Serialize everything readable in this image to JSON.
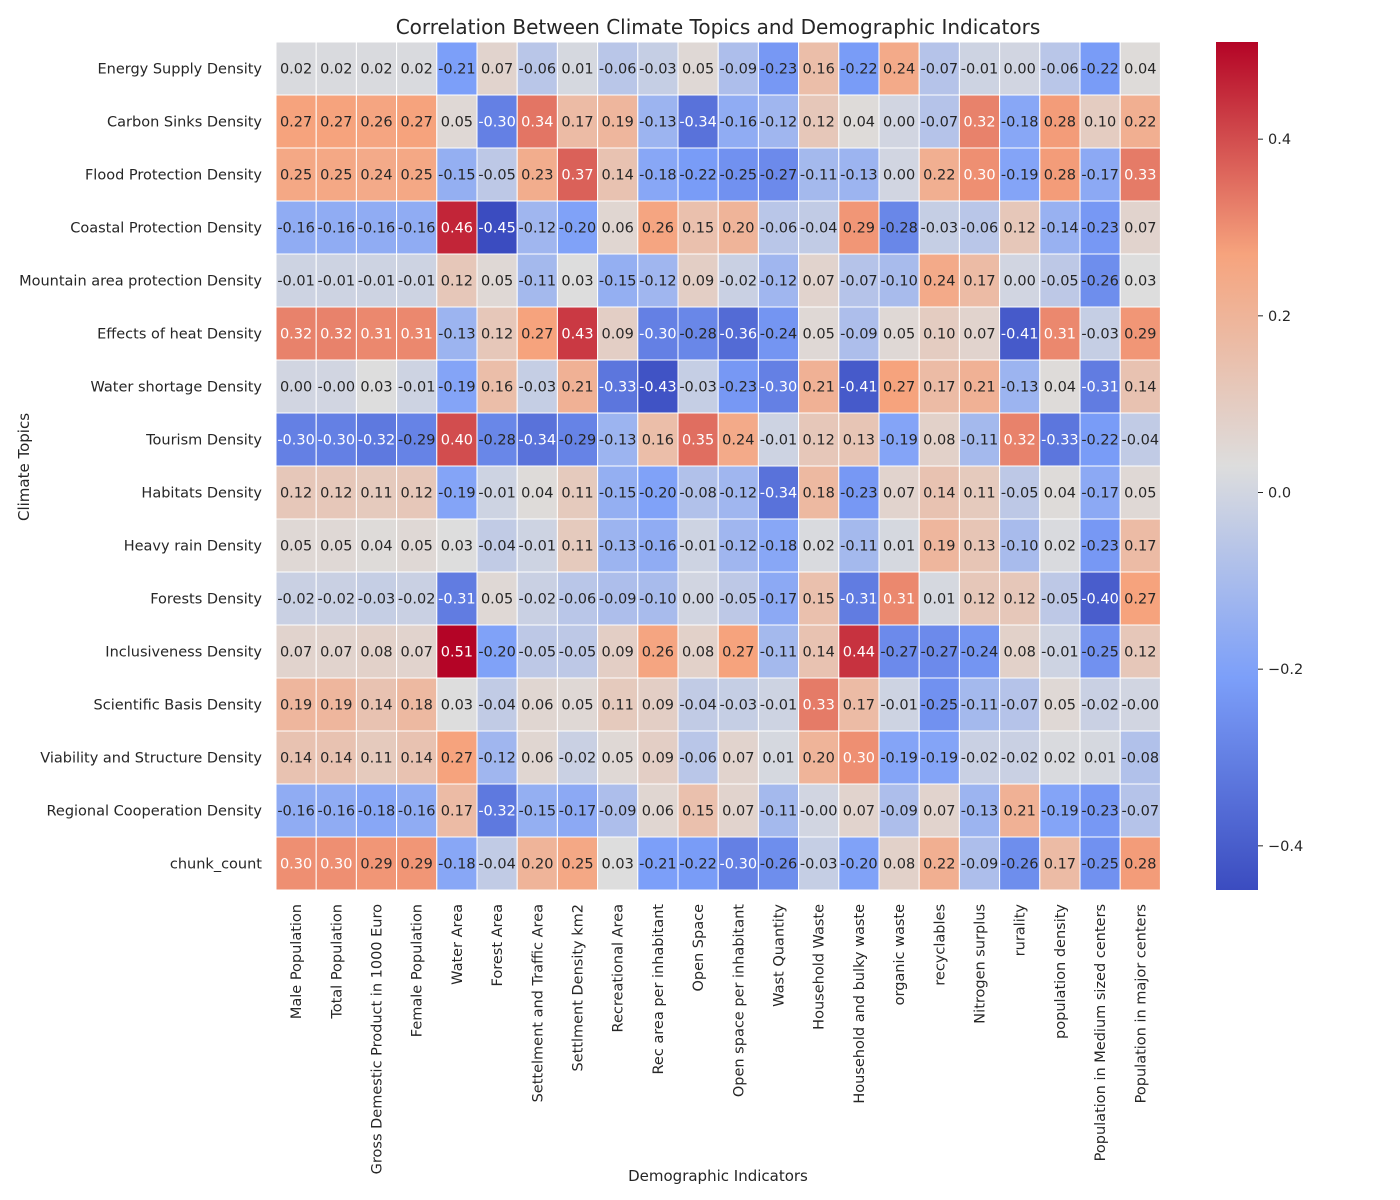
{
  "chart_data": {
    "type": "heatmap",
    "title": "Correlation Between Climate Topics and Demographic Indicators",
    "xlabel": "Demographic Indicators",
    "ylabel": "Climate Topics",
    "colormap": "coolwarm",
    "colorbar": {
      "min": -0.45,
      "max": 0.51,
      "ticks": [
        0.4,
        0.2,
        0.0,
        -0.2,
        -0.4
      ],
      "tick_labels": [
        "0.4",
        "0.2",
        "0.0",
        "−0.2",
        "−0.4"
      ]
    },
    "rows": [
      "Energy Supply Density",
      "Carbon Sinks Density",
      "Flood Protection Density",
      "Coastal Protection Density",
      "Mountain area protection Density",
      "Effects of heat Density",
      "Water shortage Density",
      "Tourism Density",
      "Habitats Density",
      "Heavy rain Density",
      "Forests Density",
      "Inclusiveness Density",
      "Scientific Basis Density",
      "Viability and Structure Density",
      "Regional Cooperation Density",
      "chunk_count"
    ],
    "columns": [
      "Male Population",
      "Total Population",
      "Gross Demestic Product in 1000 Euro",
      "Female Population",
      "Water Area",
      "Forest Area",
      "Settelment and Traffic Area",
      "Settlment Density km2",
      "Recreational Area",
      "Rec area per inhabitant",
      "Open Space",
      "Open space per inhabitant",
      "Wast Quantity",
      "Household Waste",
      "Household and bulky waste",
      "organic waste",
      "recyclables",
      "Nitrogen surplus",
      "rurality",
      "population density",
      "Population in Medium sized centers",
      "Population in major centers"
    ],
    "values": [
      [
        0.02,
        0.02,
        0.02,
        0.02,
        -0.21,
        0.07,
        -0.06,
        0.01,
        -0.06,
        -0.03,
        0.05,
        -0.09,
        -0.23,
        0.16,
        -0.22,
        0.24,
        -0.07,
        -0.01,
        0.0,
        -0.06,
        -0.22,
        0.04
      ],
      [
        0.27,
        0.27,
        0.26,
        0.27,
        0.05,
        -0.3,
        0.34,
        0.17,
        0.19,
        -0.13,
        -0.34,
        -0.16,
        -0.12,
        0.12,
        0.04,
        0.0,
        -0.07,
        0.32,
        -0.18,
        0.28,
        0.1,
        0.22
      ],
      [
        0.25,
        0.25,
        0.24,
        0.25,
        -0.15,
        -0.05,
        0.23,
        0.37,
        0.14,
        -0.18,
        -0.22,
        -0.25,
        -0.27,
        -0.11,
        -0.13,
        0.0,
        0.22,
        0.3,
        -0.19,
        0.28,
        -0.17,
        0.33
      ],
      [
        -0.16,
        -0.16,
        -0.16,
        -0.16,
        0.46,
        -0.45,
        -0.12,
        -0.2,
        0.06,
        0.26,
        0.15,
        0.2,
        -0.06,
        -0.04,
        0.29,
        -0.28,
        -0.03,
        -0.06,
        0.12,
        -0.14,
        -0.23,
        0.07
      ],
      [
        -0.01,
        -0.01,
        -0.01,
        -0.01,
        0.12,
        0.05,
        -0.11,
        0.03,
        -0.15,
        -0.12,
        0.09,
        -0.02,
        -0.12,
        0.07,
        -0.07,
        -0.1,
        0.24,
        0.17,
        0.0,
        -0.05,
        -0.26,
        0.03
      ],
      [
        0.32,
        0.32,
        0.31,
        0.31,
        -0.13,
        0.12,
        0.27,
        0.43,
        0.09,
        -0.3,
        -0.28,
        -0.36,
        -0.24,
        0.05,
        -0.09,
        0.05,
        0.1,
        0.07,
        -0.41,
        0.31,
        -0.03,
        0.29
      ],
      [
        0.0,
        -0.0,
        0.03,
        -0.01,
        -0.19,
        0.16,
        -0.03,
        0.21,
        -0.33,
        -0.43,
        -0.03,
        -0.23,
        -0.3,
        0.21,
        -0.41,
        0.27,
        0.17,
        0.21,
        -0.13,
        0.04,
        -0.31,
        0.14
      ],
      [
        -0.3,
        -0.3,
        -0.32,
        -0.29,
        0.4,
        -0.28,
        -0.34,
        -0.29,
        -0.13,
        0.16,
        0.35,
        0.24,
        -0.01,
        0.12,
        0.13,
        -0.19,
        0.08,
        -0.11,
        0.32,
        -0.33,
        -0.22,
        -0.04
      ],
      [
        0.12,
        0.12,
        0.11,
        0.12,
        -0.19,
        -0.01,
        0.04,
        0.11,
        -0.15,
        -0.2,
        -0.08,
        -0.12,
        -0.34,
        0.18,
        -0.23,
        0.07,
        0.14,
        0.11,
        -0.05,
        0.04,
        -0.17,
        0.05
      ],
      [
        0.05,
        0.05,
        0.04,
        0.05,
        0.03,
        -0.04,
        -0.01,
        0.11,
        -0.13,
        -0.16,
        -0.01,
        -0.12,
        -0.18,
        0.02,
        -0.11,
        0.01,
        0.19,
        0.13,
        -0.1,
        0.02,
        -0.23,
        0.17
      ],
      [
        -0.02,
        -0.02,
        -0.03,
        -0.02,
        -0.31,
        0.05,
        -0.02,
        -0.06,
        -0.09,
        -0.1,
        0.0,
        -0.05,
        -0.17,
        0.15,
        -0.31,
        0.31,
        0.01,
        0.12,
        0.12,
        -0.05,
        -0.4,
        0.27
      ],
      [
        0.07,
        0.07,
        0.08,
        0.07,
        0.51,
        -0.2,
        -0.05,
        -0.05,
        0.09,
        0.26,
        0.08,
        0.27,
        -0.11,
        0.14,
        0.44,
        -0.27,
        -0.27,
        -0.24,
        0.08,
        -0.01,
        -0.25,
        0.12
      ],
      [
        0.19,
        0.19,
        0.14,
        0.18,
        0.03,
        -0.04,
        0.06,
        0.05,
        0.11,
        0.09,
        -0.04,
        -0.03,
        -0.01,
        0.33,
        0.17,
        -0.01,
        -0.25,
        -0.11,
        -0.07,
        0.05,
        -0.02,
        -0.0
      ],
      [
        0.14,
        0.14,
        0.11,
        0.14,
        0.27,
        -0.12,
        0.06,
        -0.02,
        0.05,
        0.09,
        -0.06,
        0.07,
        0.01,
        0.2,
        0.3,
        -0.19,
        -0.19,
        -0.02,
        -0.02,
        0.02,
        0.01,
        -0.08
      ],
      [
        -0.16,
        -0.16,
        -0.18,
        -0.16,
        0.17,
        -0.32,
        -0.15,
        -0.17,
        -0.09,
        0.06,
        0.15,
        0.07,
        -0.11,
        -0.0,
        0.07,
        -0.09,
        0.07,
        -0.13,
        0.21,
        -0.19,
        -0.23,
        -0.07
      ],
      [
        0.3,
        0.3,
        0.29,
        0.29,
        -0.18,
        -0.04,
        0.2,
        0.25,
        0.03,
        -0.21,
        -0.22,
        -0.3,
        -0.26,
        -0.03,
        -0.2,
        0.08,
        0.22,
        -0.09,
        -0.26,
        0.17,
        -0.25,
        0.28
      ]
    ],
    "value_labels": [
      [
        "0.02",
        "0.02",
        "0.02",
        "0.02",
        "-0.21",
        "0.07",
        "-0.06",
        "0.01",
        "-0.06",
        "-0.03",
        "0.05",
        "-0.09",
        "-0.23",
        "0.16",
        "-0.22",
        "0.24",
        "-0.07",
        "-0.01",
        "0.00",
        "-0.06",
        "-0.22",
        "0.04"
      ],
      [
        "0.27",
        "0.27",
        "0.26",
        "0.27",
        "0.05",
        "-0.30",
        "0.34",
        "0.17",
        "0.19",
        "-0.13",
        "-0.34",
        "-0.16",
        "-0.12",
        "0.12",
        "0.04",
        "0.00",
        "-0.07",
        "0.32",
        "-0.18",
        "0.28",
        "0.10",
        "0.22"
      ],
      [
        "0.25",
        "0.25",
        "0.24",
        "0.25",
        "-0.15",
        "-0.05",
        "0.23",
        "0.37",
        "0.14",
        "-0.18",
        "-0.22",
        "-0.25",
        "-0.27",
        "-0.11",
        "-0.13",
        "0.00",
        "0.22",
        "0.30",
        "-0.19",
        "0.28",
        "-0.17",
        "0.33"
      ],
      [
        "-0.16",
        "-0.16",
        "-0.16",
        "-0.16",
        "0.46",
        "-0.45",
        "-0.12",
        "-0.20",
        "0.06",
        "0.26",
        "0.15",
        "0.20",
        "-0.06",
        "-0.04",
        "0.29",
        "-0.28",
        "-0.03",
        "-0.06",
        "0.12",
        "-0.14",
        "-0.23",
        "0.07"
      ],
      [
        "-0.01",
        "-0.01",
        "-0.01",
        "-0.01",
        "0.12",
        "0.05",
        "-0.11",
        "0.03",
        "-0.15",
        "-0.12",
        "0.09",
        "-0.02",
        "-0.12",
        "0.07",
        "-0.07",
        "-0.10",
        "0.24",
        "0.17",
        "0.00",
        "-0.05",
        "-0.26",
        "0.03"
      ],
      [
        "0.32",
        "0.32",
        "0.31",
        "0.31",
        "-0.13",
        "0.12",
        "0.27",
        "0.43",
        "0.09",
        "-0.30",
        "-0.28",
        "-0.36",
        "-0.24",
        "0.05",
        "-0.09",
        "0.05",
        "0.10",
        "0.07",
        "-0.41",
        "0.31",
        "-0.03",
        "0.29"
      ],
      [
        "0.00",
        "-0.00",
        "0.03",
        "-0.01",
        "-0.19",
        "0.16",
        "-0.03",
        "0.21",
        "-0.33",
        "-0.43",
        "-0.03",
        "-0.23",
        "-0.30",
        "0.21",
        "-0.41",
        "0.27",
        "0.17",
        "0.21",
        "-0.13",
        "0.04",
        "-0.31",
        "0.14"
      ],
      [
        "-0.30",
        "-0.30",
        "-0.32",
        "-0.29",
        "0.40",
        "-0.28",
        "-0.34",
        "-0.29",
        "-0.13",
        "0.16",
        "0.35",
        "0.24",
        "-0.01",
        "0.12",
        "0.13",
        "-0.19",
        "0.08",
        "-0.11",
        "0.32",
        "-0.33",
        "-0.22",
        "-0.04"
      ],
      [
        "0.12",
        "0.12",
        "0.11",
        "0.12",
        "-0.19",
        "-0.01",
        "0.04",
        "0.11",
        "-0.15",
        "-0.20",
        "-0.08",
        "-0.12",
        "-0.34",
        "0.18",
        "-0.23",
        "0.07",
        "0.14",
        "0.11",
        "-0.05",
        "0.04",
        "-0.17",
        "0.05"
      ],
      [
        "0.05",
        "0.05",
        "0.04",
        "0.05",
        "0.03",
        "-0.04",
        "-0.01",
        "0.11",
        "-0.13",
        "-0.16",
        "-0.01",
        "-0.12",
        "-0.18",
        "0.02",
        "-0.11",
        "0.01",
        "0.19",
        "0.13",
        "-0.10",
        "0.02",
        "-0.23",
        "0.17"
      ],
      [
        "-0.02",
        "-0.02",
        "-0.03",
        "-0.02",
        "-0.31",
        "0.05",
        "-0.02",
        "-0.06",
        "-0.09",
        "-0.10",
        "0.00",
        "-0.05",
        "-0.17",
        "0.15",
        "-0.31",
        "0.31",
        "0.01",
        "0.12",
        "0.12",
        "-0.05",
        "-0.40",
        "0.27"
      ],
      [
        "0.07",
        "0.07",
        "0.08",
        "0.07",
        "0.51",
        "-0.20",
        "-0.05",
        "-0.05",
        "0.09",
        "0.26",
        "0.08",
        "0.27",
        "-0.11",
        "0.14",
        "0.44",
        "-0.27",
        "-0.27",
        "-0.24",
        "0.08",
        "-0.01",
        "-0.25",
        "0.12"
      ],
      [
        "0.19",
        "0.19",
        "0.14",
        "0.18",
        "0.03",
        "-0.04",
        "0.06",
        "0.05",
        "0.11",
        "0.09",
        "-0.04",
        "-0.03",
        "-0.01",
        "0.33",
        "0.17",
        "-0.01",
        "-0.25",
        "-0.11",
        "-0.07",
        "0.05",
        "-0.02",
        "-0.00"
      ],
      [
        "0.14",
        "0.14",
        "0.11",
        "0.14",
        "0.27",
        "-0.12",
        "0.06",
        "-0.02",
        "0.05",
        "0.09",
        "-0.06",
        "0.07",
        "0.01",
        "0.20",
        "0.30",
        "-0.19",
        "-0.19",
        "-0.02",
        "-0.02",
        "0.02",
        "0.01",
        "-0.08"
      ],
      [
        "-0.16",
        "-0.16",
        "-0.18",
        "-0.16",
        "0.17",
        "-0.32",
        "-0.15",
        "-0.17",
        "-0.09",
        "0.06",
        "0.15",
        "0.07",
        "-0.11",
        "-0.00",
        "0.07",
        "-0.09",
        "0.07",
        "-0.13",
        "0.21",
        "-0.19",
        "-0.23",
        "-0.07"
      ],
      [
        "0.30",
        "0.30",
        "0.29",
        "0.29",
        "-0.18",
        "-0.04",
        "0.20",
        "0.25",
        "0.03",
        "-0.21",
        "-0.22",
        "-0.30",
        "-0.26",
        "-0.03",
        "-0.20",
        "0.08",
        "0.22",
        "-0.09",
        "-0.26",
        "0.17",
        "-0.25",
        "0.28"
      ]
    ]
  }
}
